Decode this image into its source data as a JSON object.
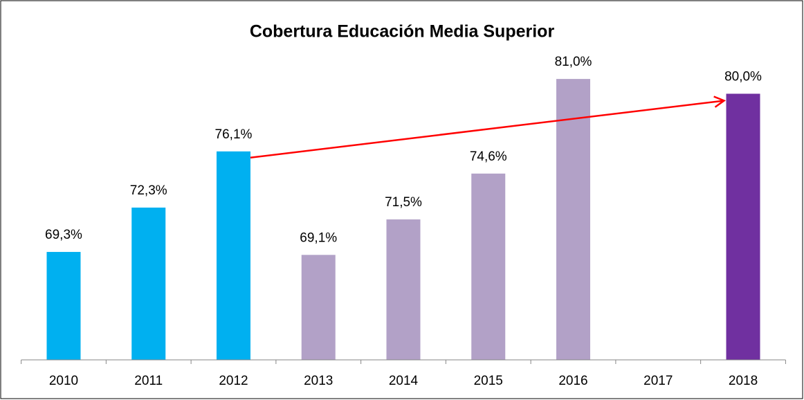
{
  "chart_data": {
    "type": "bar",
    "title": "Cobertura Educación Media Superior",
    "categories": [
      "2010",
      "2011",
      "2012",
      "2013",
      "2014",
      "2015",
      "2016",
      "2017",
      "2018"
    ],
    "values": [
      69.3,
      72.3,
      76.1,
      69.1,
      71.5,
      74.6,
      81.0,
      null,
      80.0
    ],
    "value_labels": [
      "69,3%",
      "72,3%",
      "76,1%",
      "69,1%",
      "71,5%",
      "74,6%",
      "81,0%",
      null,
      "80,0%"
    ],
    "colors": [
      "#00b0f0",
      "#00b0f0",
      "#00b0f0",
      "#b2a1c7",
      "#b2a1c7",
      "#b2a1c7",
      "#b2a1c7",
      "#b2a1c7",
      "#7030a0"
    ],
    "ylim": [
      62,
      84
    ],
    "grid": false
  }
}
